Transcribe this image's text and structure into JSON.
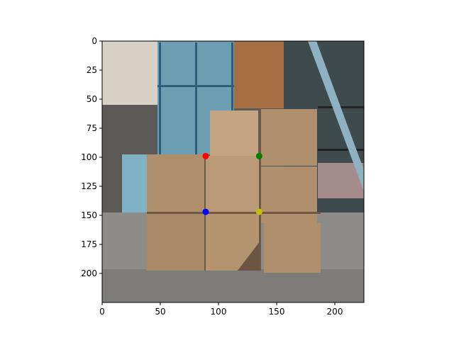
{
  "chart_data": {
    "type": "scatter",
    "title": "",
    "xlabel": "",
    "ylabel": "",
    "xlim": [
      0,
      225
    ],
    "ylim": [
      225,
      0
    ],
    "x_ticks": [
      0,
      50,
      100,
      150,
      200
    ],
    "y_ticks": [
      0,
      25,
      50,
      75,
      100,
      125,
      150,
      175,
      200
    ],
    "grid": false,
    "background": "photograph of stacked cardboard boxes in a warehouse",
    "points": [
      {
        "x": 89,
        "y": 99,
        "color": "#ff0000"
      },
      {
        "x": 135,
        "y": 99,
        "color": "#008000"
      },
      {
        "x": 89,
        "y": 147,
        "color": "#0000ff"
      },
      {
        "x": 135,
        "y": 147,
        "color": "#bfbf00"
      }
    ]
  },
  "colors": {
    "floor": "#8d8c88",
    "wall": "#5b5a56",
    "box": "#b08f6c",
    "box_dark": "#95775a",
    "box_light": "#c4a583",
    "rack_blue": "#5f8fa4",
    "shelving": "#3f4a4c"
  }
}
